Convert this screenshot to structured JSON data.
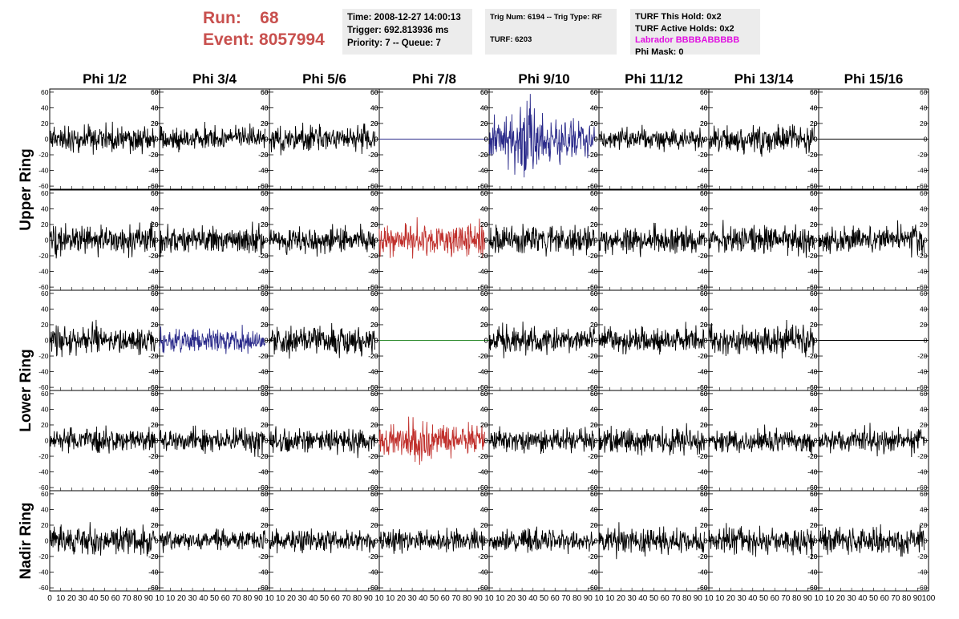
{
  "header": {
    "run_label": "Run:",
    "run_value": "68",
    "event_label": "Event:",
    "event_value": "8057994"
  },
  "info_time": {
    "time": "Time: 2008-12-27 14:00:13",
    "trigger": "Trigger: 692.813936 ms",
    "priority": "Priority: 7 -- Queue: 7"
  },
  "info_trig": {
    "trig": "Trig Num: 6194 -- Trig Type: RF",
    "turf": "TURF: 6203"
  },
  "info_turf": {
    "this_hold": "TURF This Hold: 0x2",
    "active_holds": "TURF Active Holds: 0x2",
    "labrador": "Labrador BBBBABBBBB",
    "phi_mask": "Phi Mask: 0"
  },
  "colors": {
    "black": "#000000",
    "blue": "#2a2a8a",
    "red": "#c0302c",
    "green": "#2e8b2e",
    "header_red": "#c8504e",
    "magenta": "#e010e0",
    "info_bg": "#ececec"
  },
  "chart_data": {
    "type": "line",
    "columns": [
      "Phi 1/2",
      "Phi 3/4",
      "Phi 5/6",
      "Phi 7/8",
      "Phi 9/10",
      "Phi 11/12",
      "Phi 13/14",
      "Phi 15/16"
    ],
    "ring_labels": [
      {
        "label": "Upper Ring",
        "rows": [
          0,
          1
        ]
      },
      {
        "label": "Lower Ring",
        "rows": [
          2,
          3
        ]
      },
      {
        "label": "Nadir Ring",
        "rows": [
          4
        ]
      }
    ],
    "xlim": [
      0,
      100
    ],
    "ylim": [
      -64,
      64
    ],
    "yticks": [
      -60,
      -40,
      -20,
      0,
      20,
      40,
      60
    ],
    "xticks": [
      0,
      10,
      20,
      30,
      40,
      50,
      60,
      70,
      80,
      90,
      100
    ],
    "xtick_labels_first": [
      "0",
      "10",
      "20",
      "30",
      "40",
      "50",
      "60",
      "70",
      "80",
      "90",
      "10"
    ],
    "xtick_labels_other": [
      "",
      "10",
      "20",
      "30",
      "40",
      "50",
      "60",
      "70",
      "80",
      "90",
      "10"
    ],
    "xtick_labels_last": [
      "",
      "10",
      "20",
      "30",
      "40",
      "50",
      "60",
      "70",
      "80",
      "90",
      "100"
    ],
    "waveform": {
      "samples": 260,
      "x_end": 96
    },
    "panels": [
      [
        {
          "color": "black",
          "amp": 14,
          "seed": 11
        },
        {
          "color": "black",
          "amp": 13,
          "seed": 12
        },
        {
          "color": "black",
          "amp": 14,
          "seed": 13
        },
        {
          "color": "blue",
          "amp": 0,
          "seed": 14,
          "flat": true
        },
        {
          "color": "blue",
          "amp": 22,
          "seed": 15,
          "pulse": 2.2
        },
        {
          "color": "black",
          "amp": 11,
          "seed": 16
        },
        {
          "color": "black",
          "amp": 13,
          "seed": 17
        },
        {
          "color": "black",
          "amp": 0,
          "seed": 18,
          "flat": true
        }
      ],
      [
        {
          "color": "black",
          "amp": 15,
          "seed": 21
        },
        {
          "color": "black",
          "amp": 14,
          "seed": 22
        },
        {
          "color": "black",
          "amp": 14,
          "seed": 23
        },
        {
          "color": "red",
          "amp": 17,
          "seed": 24
        },
        {
          "color": "black",
          "amp": 14,
          "seed": 25
        },
        {
          "color": "black",
          "amp": 14,
          "seed": 26
        },
        {
          "color": "black",
          "amp": 14,
          "seed": 27
        },
        {
          "color": "black",
          "amp": 14,
          "seed": 28
        }
      ],
      [
        {
          "color": "black",
          "amp": 15,
          "seed": 31
        },
        {
          "color": "blue",
          "amp": 12,
          "seed": 32
        },
        {
          "color": "black",
          "amp": 15,
          "seed": 33
        },
        {
          "color": "green",
          "amp": 0,
          "seed": 34,
          "flat": true
        },
        {
          "color": "black",
          "amp": 14,
          "seed": 35
        },
        {
          "color": "black",
          "amp": 14,
          "seed": 36
        },
        {
          "color": "black",
          "amp": 15,
          "seed": 37
        },
        {
          "color": "black",
          "amp": 0,
          "seed": 38,
          "flat": true
        }
      ],
      [
        {
          "color": "black",
          "amp": 12,
          "seed": 41
        },
        {
          "color": "black",
          "amp": 13,
          "seed": 42
        },
        {
          "color": "black",
          "amp": 13,
          "seed": 43
        },
        {
          "color": "red",
          "amp": 16,
          "seed": 44,
          "pulse": 1.9
        },
        {
          "color": "black",
          "amp": 12,
          "seed": 45
        },
        {
          "color": "black",
          "amp": 14,
          "seed": 46
        },
        {
          "color": "black",
          "amp": 12,
          "seed": 47
        },
        {
          "color": "black",
          "amp": 13,
          "seed": 48
        }
      ],
      [
        {
          "color": "black",
          "amp": 14,
          "seed": 51
        },
        {
          "color": "black",
          "amp": 11,
          "seed": 52
        },
        {
          "color": "black",
          "amp": 12,
          "seed": 53
        },
        {
          "color": "black",
          "amp": 12,
          "seed": 54
        },
        {
          "color": "black",
          "amp": 12,
          "seed": 55
        },
        {
          "color": "black",
          "amp": 14,
          "seed": 56
        },
        {
          "color": "black",
          "amp": 14,
          "seed": 57
        },
        {
          "color": "black",
          "amp": 14,
          "seed": 58
        }
      ]
    ]
  }
}
